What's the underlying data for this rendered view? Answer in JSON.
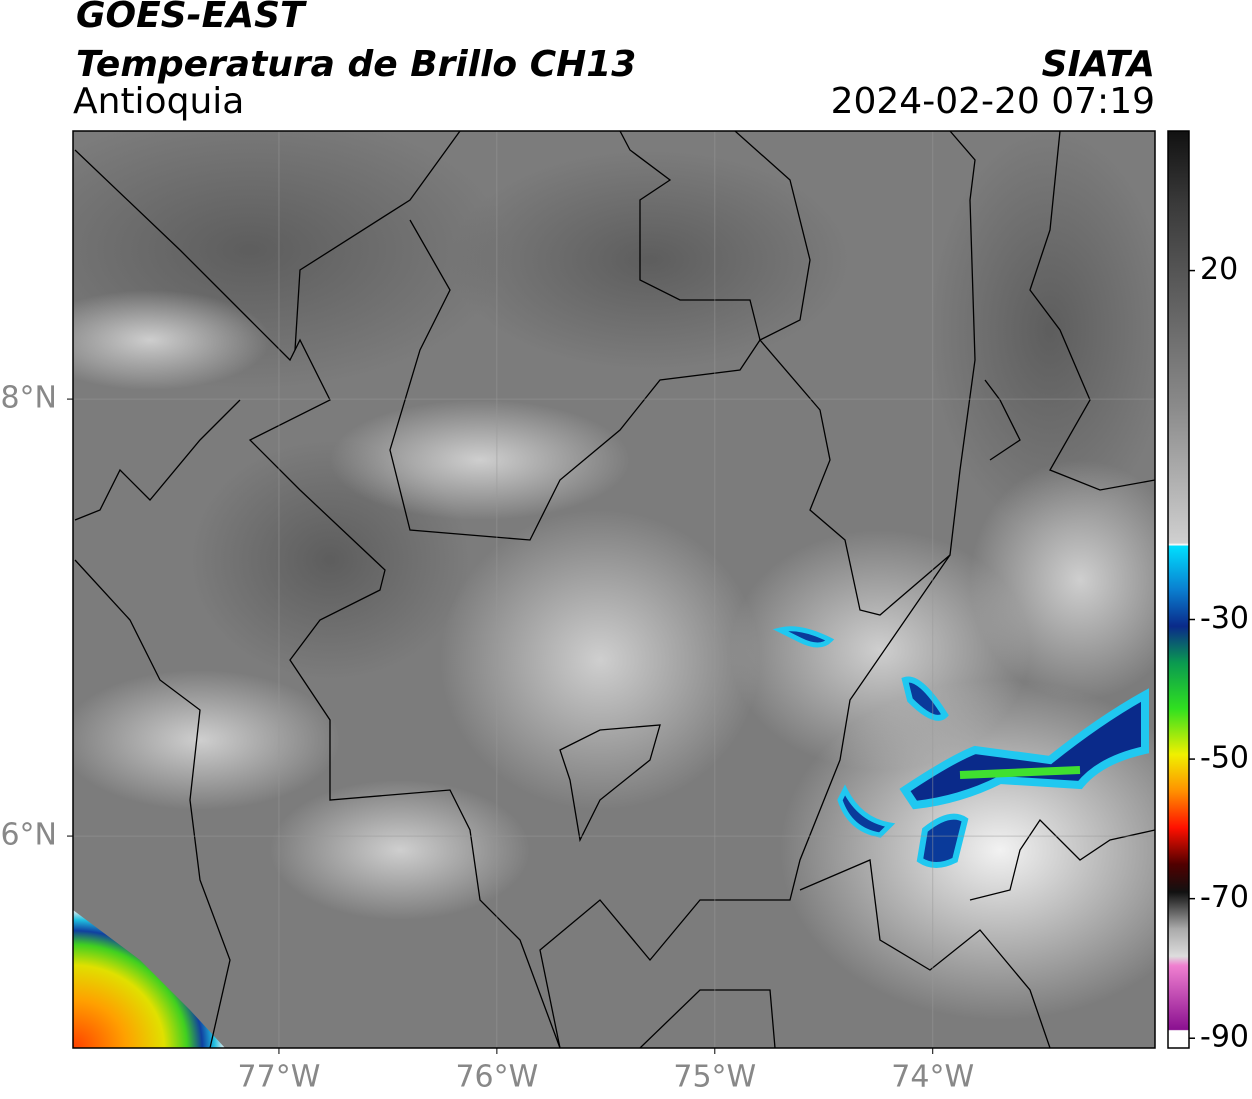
{
  "header": {
    "title": "GOES-EAST",
    "subtitle": "Temperatura de Brillo CH13",
    "region": "Antioquia",
    "source": "SIATA",
    "timestamp": "2024-02-20 07:19"
  },
  "map": {
    "xlim": [
      -77.945,
      -72.98
    ],
    "ylim": [
      5.03,
      9.227
    ],
    "xticks": [
      {
        "value": -77,
        "label": "77°W"
      },
      {
        "value": -76,
        "label": "76°W"
      },
      {
        "value": -75,
        "label": "75°W"
      },
      {
        "value": -74,
        "label": "74°W"
      }
    ],
    "yticks": [
      {
        "value": 8,
        "label": "8°N"
      },
      {
        "value": 6,
        "label": "6°N"
      }
    ]
  },
  "colorbar": {
    "range": [
      -91.4,
      40
    ],
    "ticks": [
      20,
      -30,
      -50,
      -70,
      -90
    ]
  }
}
